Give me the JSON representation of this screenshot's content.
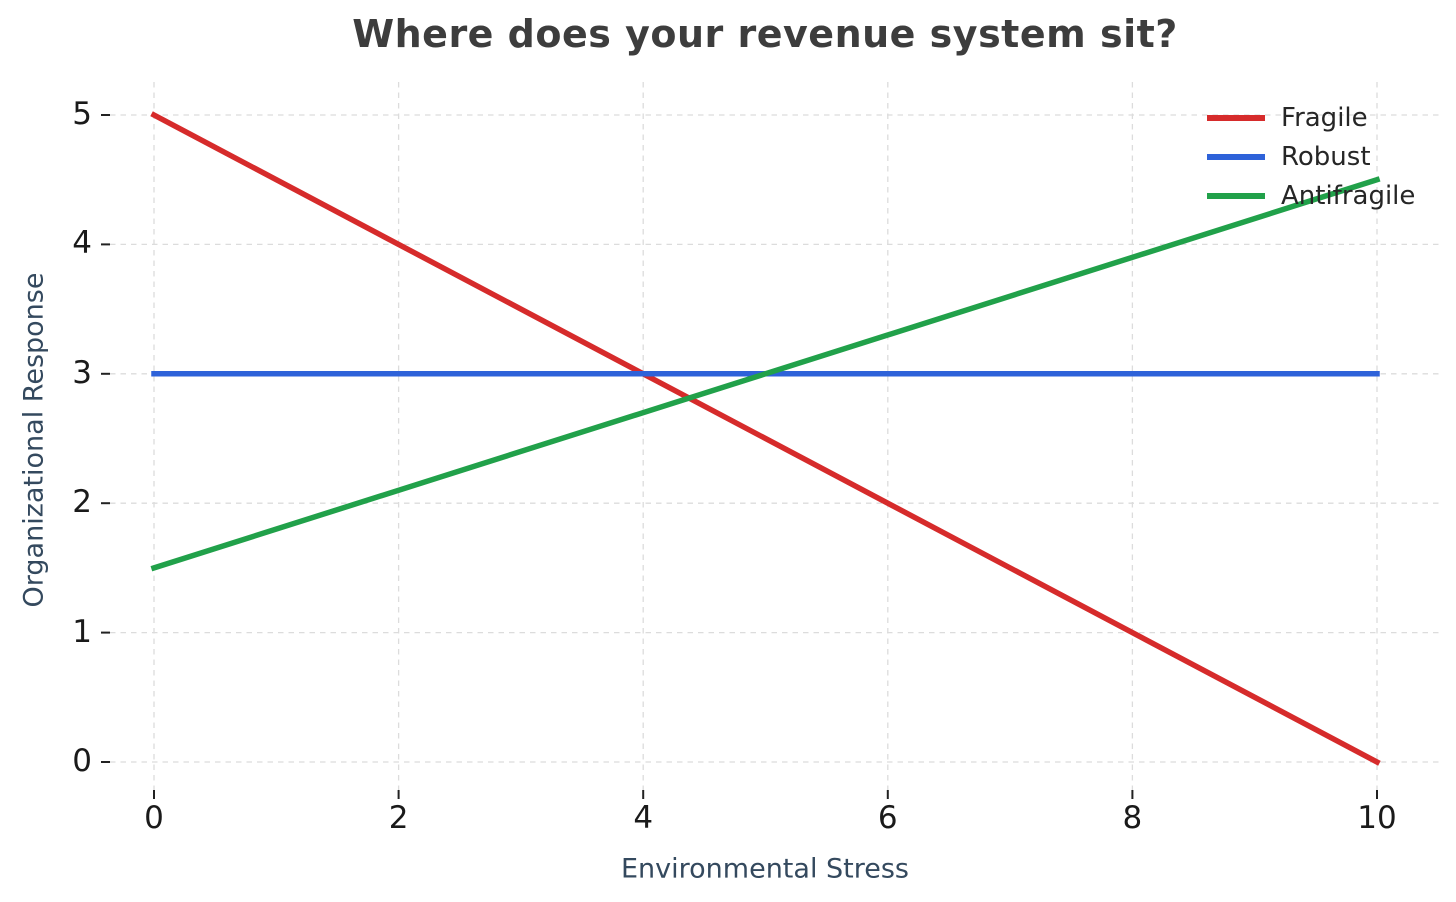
{
  "chart_data": {
    "type": "line",
    "title": "Where does your revenue system sit?",
    "xlabel": "Environmental Stress",
    "ylabel": "Organizational Response",
    "xlim": [
      0,
      10
    ],
    "ylim": [
      0,
      5
    ],
    "xticks": [
      "0",
      "2",
      "4",
      "6",
      "8",
      "10"
    ],
    "xtick_values": [
      0,
      2,
      4,
      6,
      8,
      10
    ],
    "yticks": [
      "0",
      "1",
      "2",
      "3",
      "4",
      "5"
    ],
    "ytick_values": [
      0,
      1,
      2,
      3,
      4,
      5
    ],
    "grid": "dashed",
    "legend_position": "upper right",
    "series": [
      {
        "name": "Fragile",
        "color": "#d62b2b",
        "points": [
          [
            0,
            5.0
          ],
          [
            10,
            0.0
          ]
        ]
      },
      {
        "name": "Robust",
        "color": "#2e62d9",
        "points": [
          [
            0,
            3.0
          ],
          [
            10,
            3.0
          ]
        ]
      },
      {
        "name": "Antifragile",
        "color": "#21a14a",
        "points": [
          [
            0,
            1.5
          ],
          [
            10,
            4.5
          ]
        ]
      }
    ]
  },
  "colors": {
    "title": "#3d3d3d",
    "axis_label": "#34495e",
    "tick_label": "#1a1a1a",
    "tick_mark": "#222222",
    "gridline": "#dcdcdc",
    "background": "#ffffff"
  }
}
